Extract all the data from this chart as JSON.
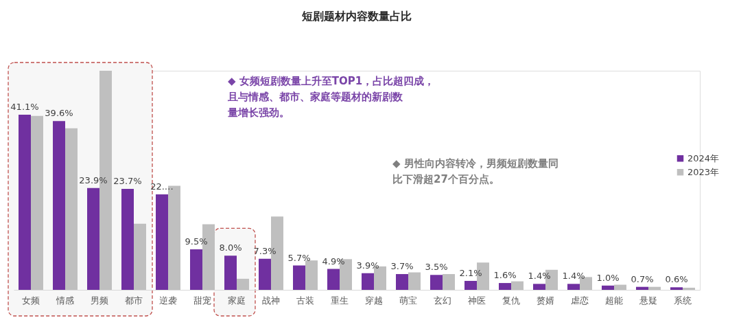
{
  "chart_data": {
    "type": "bar",
    "title": "短剧题材内容数量占比",
    "categories": [
      "女频",
      "情感",
      "男频",
      "都市",
      "逆袭",
      "甜宠",
      "家庭",
      "战神",
      "古装",
      "重生",
      "穿越",
      "萌宝",
      "玄幻",
      "神医",
      "复仇",
      "赘婿",
      "虐恋",
      "超能",
      "悬疑",
      "系统"
    ],
    "series": [
      {
        "name": "2024年",
        "color": "#7030a0",
        "values": [
          41.1,
          39.6,
          23.9,
          23.7,
          22.4,
          9.5,
          8.0,
          7.3,
          5.7,
          4.9,
          3.9,
          3.7,
          3.5,
          2.1,
          1.6,
          1.4,
          1.4,
          1.0,
          0.7,
          0.6
        ],
        "value_labels": [
          "41.1%",
          "39.6%",
          "23.9%",
          "23.7%",
          "22.…",
          "9.5%",
          "8.0%",
          "7.3%",
          "5.7%",
          "4.9%",
          "3.9%",
          "3.7%",
          "3.5%",
          "2.1%",
          "1.6%",
          "1.4%",
          "1.4%",
          "1.0%",
          "0.7%",
          "0.6%"
        ]
      },
      {
        "name": "2023年",
        "color": "#bfbfbf",
        "values": [
          40.8,
          37.9,
          51.4,
          15.5,
          24.4,
          15.4,
          2.6,
          17.2,
          6.9,
          7.2,
          5.5,
          4.1,
          3.7,
          6.4,
          2.0,
          4.7,
          3.0,
          1.2,
          0.7,
          0.5
        ]
      }
    ],
    "annotations": [
      "◆ 女频短剧数量上升至TOP1，占比超四成，且与情感、都市、家庭等题材的新剧数量增长强劲。",
      "◆ 男性向内容转冷，男频短剧数量同比下滑超27个百分点。"
    ],
    "bands": [
      {
        "axis": "x",
        "from": "女频",
        "to": "都市",
        "color": "#c0504d"
      },
      {
        "axis": "x",
        "from": "家庭",
        "to": "家庭",
        "color": "#c0504d"
      }
    ],
    "legend": "right",
    "tick_labels": "x"
  }
}
